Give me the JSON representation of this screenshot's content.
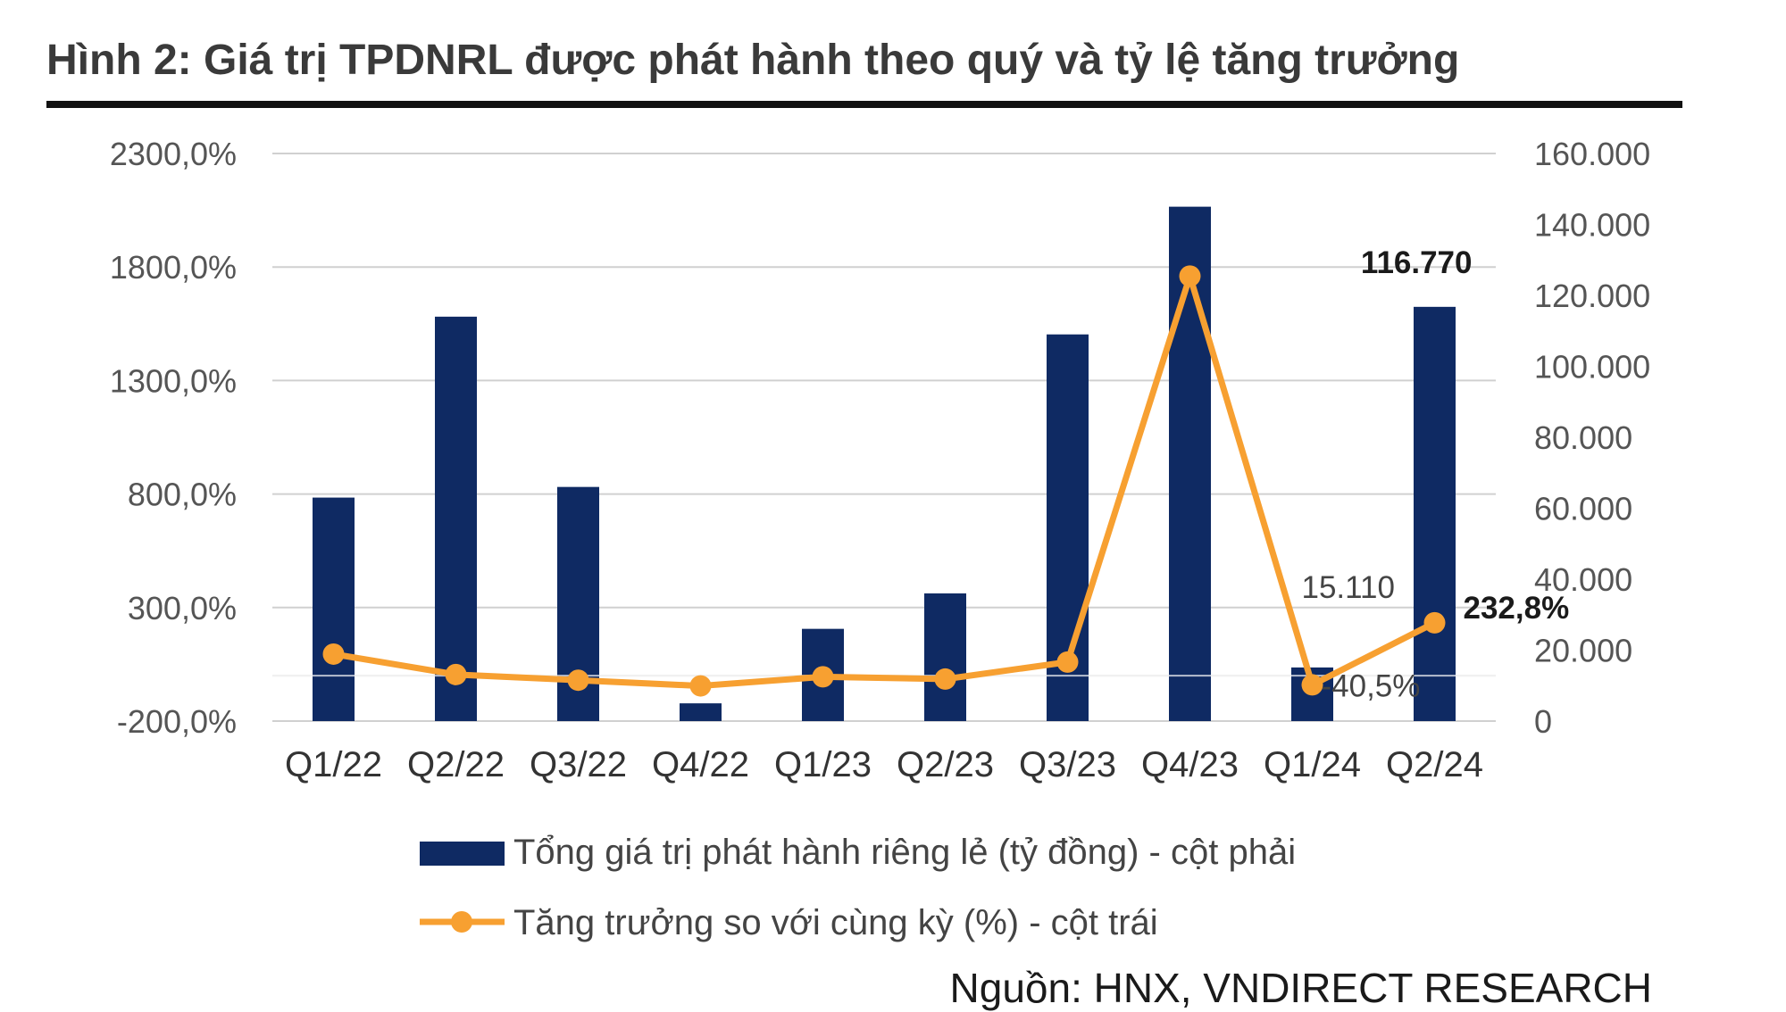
{
  "figure": {
    "title": "Hình 2: Giá trị TPDNRL được phát hành theo quý và tỷ lệ tăng trưởng",
    "source": "Nguồn: HNX, VNDIRECT RESEARCH"
  },
  "colors": {
    "bar": "#0f2a63",
    "line": "#f7a031",
    "grid": "#d0d0d0"
  },
  "chart_data": {
    "type": "bar",
    "categories": [
      "Q1/22",
      "Q2/22",
      "Q3/22",
      "Q4/22",
      "Q1/23",
      "Q2/23",
      "Q3/23",
      "Q4/23",
      "Q1/24",
      "Q2/24"
    ],
    "series": [
      {
        "name": "Tổng giá trị phát hành riêng lẻ (tỷ đồng) - cột phải",
        "type": "bar",
        "axis": "right",
        "values": [
          63000,
          114000,
          66000,
          5000,
          26000,
          36000,
          109000,
          145000,
          15110,
          116770
        ]
      },
      {
        "name": "Tăng trưởng so với cùng kỳ (%) - cột trái",
        "type": "line",
        "axis": "left",
        "values": [
          95,
          5,
          -20,
          -45,
          -5,
          -15,
          60,
          1760,
          -40.5,
          232.8
        ]
      }
    ],
    "data_labels": [
      {
        "series": 0,
        "index": 9,
        "text": "116.770",
        "bold": true
      },
      {
        "series": 0,
        "index": 8,
        "text": "15.110",
        "bold": false
      },
      {
        "series": 1,
        "index": 8,
        "text": "-40,5%",
        "bold": false
      },
      {
        "series": 1,
        "index": 9,
        "text": "232,8%",
        "bold": true
      }
    ],
    "left_axis": {
      "ylim": [
        -200,
        2300
      ],
      "ticks": [
        -200,
        300,
        800,
        1300,
        1800,
        2300
      ],
      "tick_labels": [
        "-200,0%",
        "300,0%",
        "800,0%",
        "1300,0%",
        "1800,0%",
        "2300,0%"
      ]
    },
    "right_axis": {
      "ylim": [
        0,
        160000
      ],
      "ticks": [
        0,
        20000,
        40000,
        60000,
        80000,
        100000,
        120000,
        140000,
        160000
      ],
      "tick_labels": [
        "0",
        "20.000",
        "40.000",
        "60.000",
        "80.000",
        "100.000",
        "120.000",
        "140.000",
        "160.000"
      ]
    },
    "grid": true,
    "legend": "bottom"
  }
}
